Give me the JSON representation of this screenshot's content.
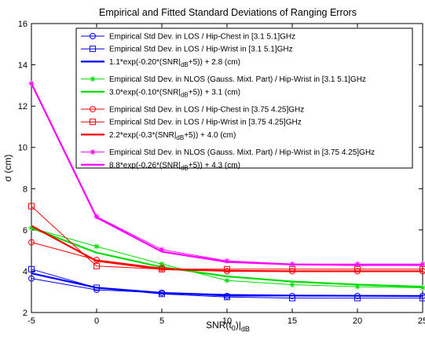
{
  "chart_data": {
    "type": "line",
    "title": "Empirical and Fitted Standard Deviations of Ranging Errors",
    "xlabel": "SNR(t",
    "xlabel_sub": "0",
    "xlabel_tail": ")|",
    "xlabel_sub2": "dB",
    "ylabel": "σ (cm)",
    "xlim": [
      -5,
      25
    ],
    "ylim": [
      2,
      16
    ],
    "xticks": [
      -5,
      0,
      5,
      10,
      15,
      20,
      25
    ],
    "yticks": [
      2,
      4,
      6,
      8,
      10,
      12,
      14,
      16
    ],
    "grid": false,
    "legend_position": "top-right",
    "x": [
      -5,
      0,
      5,
      10,
      15,
      20,
      25
    ],
    "series": [
      {
        "name": "Empirical Std Dev. in LOS / Hip-Chest in [3.1 5.1]GHz",
        "color": "#0000ff",
        "marker": "circle",
        "style": "thin",
        "values": [
          3.65,
          3.1,
          2.95,
          2.8,
          2.8,
          2.8,
          2.8
        ]
      },
      {
        "name": "Empirical Std Dev. in LOS / Hip-Wrist in [3.1 5.1]GHz",
        "color": "#0000ff",
        "marker": "square",
        "style": "thin",
        "values": [
          4.1,
          3.2,
          2.9,
          2.75,
          2.7,
          2.7,
          2.7
        ]
      },
      {
        "name_parts": [
          "1.1*exp(-0.20*(SNR|",
          "dB",
          "+5)) + 2.8 (cm)"
        ],
        "color": "#0000ff",
        "marker": "none",
        "style": "thick",
        "values": [
          3.9,
          3.2,
          2.95,
          2.85,
          2.82,
          2.81,
          2.8
        ]
      },
      {
        "name": "Empirical Std Dev. in NLOS (Gauss. Mixt. Part) / Hip-Wrist in [3.1 5.1]GHz",
        "color": "#00dd00",
        "marker": "star",
        "style": "thin",
        "values": [
          6.1,
          5.2,
          4.35,
          3.55,
          3.35,
          3.25,
          3.2
        ]
      },
      {
        "name_parts": [
          "3.0*exp(-0.10*(SNR|",
          "dB",
          "+5)) + 3.1 (cm)"
        ],
        "color": "#00dd00",
        "marker": "none",
        "style": "thick",
        "values": [
          6.1,
          4.9,
          4.2,
          3.75,
          3.5,
          3.35,
          3.25
        ]
      },
      {
        "name": "Empirical Std Dev. in LOS / Hip-Chest in [3.75 4.25]GHz",
        "color": "#ff0000",
        "marker": "circle",
        "style": "thin",
        "values": [
          5.4,
          4.55,
          4.15,
          4.0,
          4.0,
          4.0,
          4.0
        ]
      },
      {
        "name": "Empirical Std Dev. in LOS / Hip-Wrist in [3.75 4.25]GHz",
        "color": "#ff0000",
        "marker": "square",
        "style": "thin",
        "values": [
          7.15,
          4.25,
          4.1,
          4.1,
          4.1,
          4.1,
          4.1
        ]
      },
      {
        "name_parts": [
          "2.2*exp(-0.3*(SNR|",
          "dB",
          "+5)) + 4.0 (cm)"
        ],
        "color": "#ff0000",
        "marker": "none",
        "style": "thick",
        "values": [
          6.2,
          4.5,
          4.1,
          4.02,
          4.0,
          4.0,
          4.0
        ]
      },
      {
        "name": "Empirical Std Dev. in NLOS (Gauss. Mixt. Part) / Hip-Wrist in [3.75 4.25]GHz",
        "color": "#ff00ff",
        "marker": "star",
        "style": "thin",
        "values": [
          13.1,
          6.65,
          5.05,
          4.5,
          4.35,
          4.35,
          4.35
        ]
      },
      {
        "name_parts": [
          "8.8*exp(-0.26*(SNR|",
          "dB",
          "+5)) + 4.3 (cm)"
        ],
        "color": "#ff00ff",
        "marker": "none",
        "style": "thick",
        "values": [
          13.1,
          6.6,
          4.95,
          4.45,
          4.33,
          4.3,
          4.3
        ]
      }
    ]
  }
}
